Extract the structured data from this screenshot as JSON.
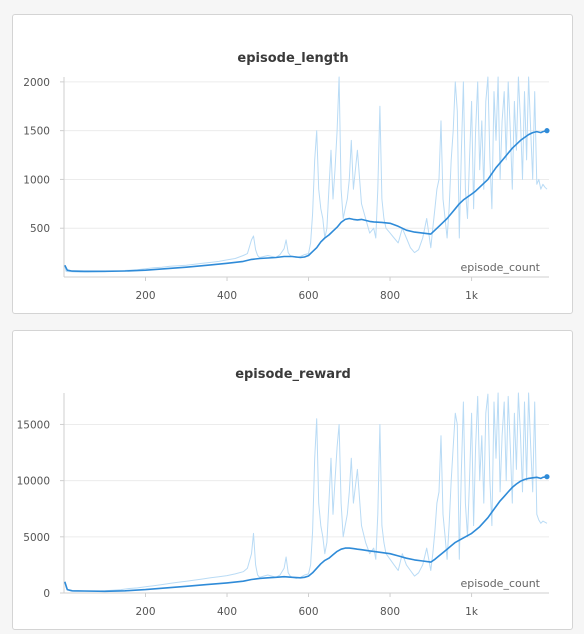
{
  "colors": {
    "raw": "#b9dbf5",
    "smooth": "#2f8bd8"
  },
  "chart_data": [
    {
      "type": "line",
      "title": "episode_length",
      "xlabel": "episode_count",
      "ylabel": "",
      "xlim": [
        0,
        1190
      ],
      "ylim": [
        0,
        2050
      ],
      "x_ticks": [
        200,
        400,
        600,
        800,
        1000
      ],
      "x_tick_labels": [
        "200",
        "400",
        "600",
        "800",
        "1k"
      ],
      "y_ticks": [
        500,
        1000,
        1500,
        2000
      ],
      "y_tick_labels": [
        "500",
        "1000",
        "1500",
        "2000"
      ],
      "grid": true,
      "series": [
        {
          "role": "raw",
          "x": [
            2,
            5,
            8,
            15,
            25,
            40,
            60,
            80,
            100,
            120,
            140,
            160,
            180,
            200,
            220,
            240,
            260,
            280,
            300,
            320,
            340,
            360,
            380,
            400,
            420,
            440,
            450,
            460,
            465,
            470,
            475,
            480,
            490,
            500,
            510,
            520,
            530,
            540,
            545,
            550,
            555,
            560,
            570,
            580,
            590,
            600,
            605,
            610,
            615,
            620,
            625,
            630,
            635,
            640,
            645,
            650,
            655,
            660,
            665,
            670,
            675,
            680,
            685,
            690,
            695,
            700,
            705,
            710,
            715,
            720,
            730,
            740,
            750,
            760,
            765,
            770,
            775,
            780,
            785,
            790,
            800,
            810,
            820,
            830,
            840,
            850,
            860,
            870,
            880,
            890,
            900,
            905,
            910,
            915,
            920,
            925,
            930,
            935,
            940,
            945,
            950,
            955,
            960,
            965,
            970,
            975,
            980,
            985,
            990,
            995,
            1000,
            1005,
            1010,
            1015,
            1020,
            1025,
            1030,
            1035,
            1040,
            1045,
            1050,
            1055,
            1060,
            1065,
            1070,
            1075,
            1080,
            1085,
            1090,
            1095,
            1100,
            1105,
            1110,
            1115,
            1120,
            1125,
            1130,
            1135,
            1140,
            1145,
            1150,
            1155,
            1160,
            1165,
            1170,
            1175,
            1180,
            1185
          ],
          "values": [
            110,
            60,
            55,
            55,
            52,
            50,
            50,
            52,
            55,
            60,
            65,
            70,
            75,
            85,
            95,
            100,
            110,
            115,
            120,
            130,
            140,
            150,
            160,
            175,
            190,
            220,
            240,
            380,
            420,
            280,
            220,
            200,
            210,
            220,
            210,
            200,
            230,
            290,
            380,
            250,
            220,
            210,
            200,
            210,
            230,
            240,
            350,
            650,
            1200,
            1500,
            900,
            700,
            600,
            400,
            500,
            900,
            1300,
            800,
            1100,
            1500,
            2050,
            900,
            600,
            700,
            800,
            1000,
            1400,
            900,
            1100,
            1300,
            750,
            600,
            450,
            500,
            400,
            900,
            1750,
            800,
            600,
            500,
            450,
            400,
            350,
            500,
            400,
            300,
            250,
            280,
            400,
            600,
            300,
            500,
            700,
            900,
            1000,
            1600,
            800,
            600,
            400,
            700,
            1200,
            1500,
            2000,
            1700,
            400,
            1300,
            2000,
            900,
            600,
            1200,
            1800,
            700,
            1500,
            2000,
            1100,
            1600,
            900,
            1800,
            2050,
            1200,
            700,
            1900,
            1400,
            2050,
            1000,
            1600,
            1900,
            1200,
            2000,
            1500,
            900,
            1800,
            1300,
            2050,
            1600,
            1000,
            1900,
            1200,
            2050,
            1500,
            1000,
            1900,
            950,
            1000,
            900,
            950,
            920,
            900
          ]
        },
        {
          "role": "smoothed",
          "x": [
            2,
            8,
            20,
            50,
            100,
            150,
            200,
            250,
            300,
            350,
            400,
            440,
            460,
            480,
            500,
            520,
            540,
            560,
            580,
            590,
            600,
            610,
            620,
            630,
            640,
            650,
            660,
            670,
            680,
            690,
            700,
            710,
            720,
            730,
            740,
            750,
            760,
            780,
            800,
            820,
            840,
            860,
            880,
            900,
            910,
            920,
            930,
            940,
            950,
            960,
            970,
            980,
            990,
            1000,
            1010,
            1020,
            1030,
            1040,
            1050,
            1060,
            1070,
            1080,
            1090,
            1100,
            1110,
            1120,
            1130,
            1140,
            1150,
            1160,
            1170,
            1175,
            1185
          ],
          "values": [
            120,
            70,
            60,
            58,
            58,
            62,
            70,
            85,
            100,
            120,
            140,
            160,
            180,
            190,
            195,
            200,
            210,
            210,
            200,
            205,
            220,
            260,
            300,
            360,
            400,
            430,
            470,
            510,
            560,
            590,
            600,
            590,
            585,
            590,
            580,
            570,
            565,
            560,
            550,
            520,
            480,
            460,
            450,
            440,
            480,
            520,
            560,
            600,
            650,
            700,
            750,
            790,
            820,
            850,
            880,
            920,
            960,
            1000,
            1060,
            1120,
            1170,
            1220,
            1270,
            1320,
            1360,
            1400,
            1430,
            1460,
            1480,
            1490,
            1480,
            1490,
            1500
          ]
        }
      ]
    },
    {
      "type": "line",
      "title": "episode_reward",
      "xlabel": "episode_count",
      "ylabel": "",
      "xlim": [
        0,
        1190
      ],
      "ylim": [
        0,
        17800
      ],
      "x_ticks": [
        200,
        400,
        600,
        800,
        1000
      ],
      "x_tick_labels": [
        "200",
        "400",
        "600",
        "800",
        "1k"
      ],
      "y_ticks": [
        0,
        5000,
        10000,
        15000
      ],
      "y_tick_labels": [
        "0",
        "5000",
        "10000",
        "15000"
      ],
      "grid": true,
      "series": [
        {
          "role": "raw",
          "x": [
            2,
            5,
            8,
            15,
            25,
            40,
            60,
            80,
            100,
            120,
            140,
            160,
            180,
            200,
            220,
            240,
            260,
            280,
            300,
            320,
            340,
            360,
            380,
            400,
            420,
            440,
            450,
            460,
            465,
            470,
            475,
            480,
            490,
            500,
            510,
            520,
            530,
            540,
            545,
            550,
            555,
            560,
            570,
            580,
            590,
            600,
            605,
            610,
            615,
            620,
            625,
            630,
            635,
            640,
            645,
            650,
            655,
            660,
            665,
            670,
            675,
            680,
            685,
            690,
            695,
            700,
            705,
            710,
            715,
            720,
            730,
            740,
            750,
            760,
            765,
            770,
            775,
            780,
            785,
            790,
            800,
            810,
            820,
            830,
            840,
            850,
            860,
            870,
            880,
            890,
            900,
            905,
            910,
            915,
            920,
            925,
            930,
            935,
            940,
            945,
            950,
            955,
            960,
            965,
            970,
            975,
            980,
            985,
            990,
            995,
            1000,
            1005,
            1010,
            1015,
            1020,
            1025,
            1030,
            1035,
            1040,
            1045,
            1050,
            1055,
            1060,
            1065,
            1070,
            1075,
            1080,
            1085,
            1090,
            1095,
            1100,
            1105,
            1110,
            1115,
            1120,
            1125,
            1130,
            1135,
            1140,
            1145,
            1150,
            1155,
            1160,
            1165,
            1170,
            1175,
            1180,
            1185
          ],
          "values": [
            1000,
            500,
            300,
            200,
            150,
            150,
            150,
            160,
            200,
            250,
            300,
            400,
            450,
            550,
            650,
            750,
            850,
            950,
            1050,
            1150,
            1250,
            1350,
            1450,
            1550,
            1700,
            1900,
            2200,
            3500,
            5300,
            2500,
            1600,
            1400,
            1500,
            1600,
            1500,
            1400,
            1600,
            2200,
            3200,
            1800,
            1500,
            1400,
            1300,
            1400,
            1600,
            1700,
            2500,
            5500,
            12000,
            15500,
            8000,
            6000,
            5000,
            3500,
            4500,
            8000,
            12000,
            7000,
            10000,
            13000,
            15000,
            8000,
            5000,
            6000,
            7000,
            9000,
            12000,
            8000,
            9500,
            11000,
            6000,
            4500,
            3500,
            4000,
            3000,
            7000,
            15000,
            6000,
            4500,
            3500,
            3000,
            2500,
            2000,
            3500,
            2500,
            2000,
            1500,
            1800,
            2500,
            4000,
            2000,
            3500,
            5500,
            8000,
            9000,
            14000,
            7000,
            5000,
            3000,
            6000,
            10000,
            13000,
            16000,
            15000,
            3000,
            11000,
            17000,
            8000,
            5000,
            10000,
            16000,
            6000,
            13000,
            17500,
            10000,
            14000,
            8000,
            16000,
            17700,
            10000,
            6000,
            17000,
            12000,
            17800,
            9000,
            14000,
            17000,
            10000,
            17500,
            13000,
            8000,
            16000,
            11000,
            17800,
            14000,
            9000,
            17000,
            10000,
            17800,
            13000,
            9000,
            17000,
            7000,
            6500,
            6200,
            6400,
            6300,
            6200
          ]
        },
        {
          "role": "smoothed",
          "x": [
            2,
            8,
            20,
            50,
            100,
            150,
            200,
            250,
            300,
            350,
            400,
            440,
            460,
            480,
            500,
            520,
            540,
            560,
            580,
            590,
            600,
            610,
            620,
            630,
            640,
            650,
            660,
            670,
            680,
            690,
            700,
            710,
            720,
            730,
            740,
            750,
            760,
            780,
            800,
            820,
            840,
            860,
            880,
            900,
            910,
            920,
            930,
            940,
            950,
            960,
            970,
            980,
            990,
            1000,
            1010,
            1020,
            1030,
            1040,
            1050,
            1060,
            1070,
            1080,
            1090,
            1100,
            1110,
            1120,
            1130,
            1140,
            1150,
            1160,
            1170,
            1175,
            1185
          ],
          "values": [
            1000,
            300,
            200,
            180,
            150,
            200,
            300,
            450,
            600,
            750,
            900,
            1050,
            1200,
            1300,
            1350,
            1400,
            1450,
            1400,
            1350,
            1400,
            1500,
            1800,
            2200,
            2600,
            2900,
            3100,
            3400,
            3700,
            3900,
            4000,
            4000,
            3950,
            3900,
            3850,
            3800,
            3750,
            3700,
            3600,
            3500,
            3300,
            3100,
            2950,
            2850,
            2750,
            3000,
            3300,
            3600,
            3900,
            4200,
            4500,
            4700,
            4900,
            5100,
            5300,
            5600,
            5900,
            6300,
            6700,
            7200,
            7700,
            8200,
            8600,
            9000,
            9400,
            9700,
            9950,
            10100,
            10200,
            10250,
            10300,
            10200,
            10300,
            10350
          ]
        }
      ]
    }
  ]
}
